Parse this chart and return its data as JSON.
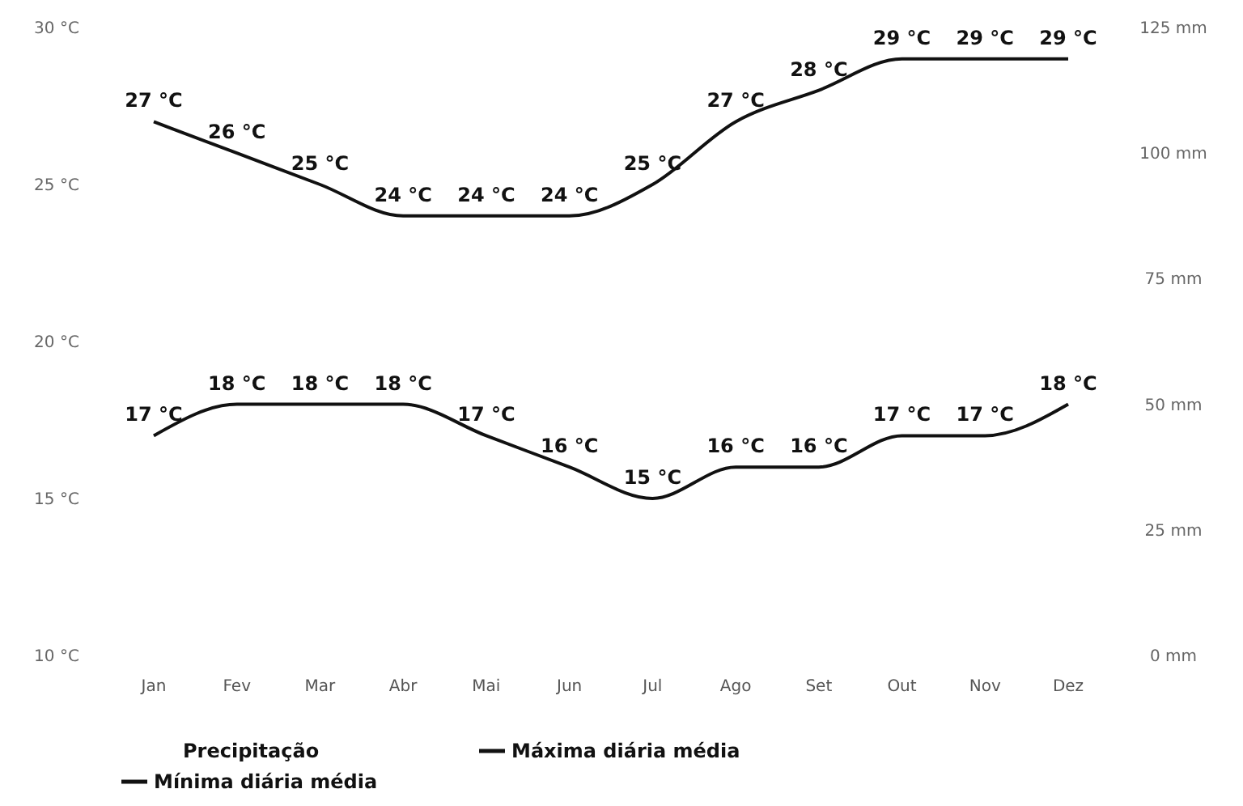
{
  "chart_data": {
    "type": "line",
    "categories": [
      "Jan",
      "Fev",
      "Mar",
      "Abr",
      "Mai",
      "Jun",
      "Jul",
      "Ago",
      "Set",
      "Out",
      "Nov",
      "Dez"
    ],
    "ylim": [
      10,
      30
    ],
    "yticks": [
      {
        "value": 10,
        "label": "10 °C"
      },
      {
        "value": 15,
        "label": "15 °C"
      },
      {
        "value": 20,
        "label": "20 °C"
      },
      {
        "value": 25,
        "label": "25 °C"
      },
      {
        "value": 30,
        "label": "30 °C"
      }
    ],
    "y2lim": [
      0,
      125
    ],
    "y2ticks": [
      {
        "value": 0,
        "label": "0 mm"
      },
      {
        "value": 25,
        "label": "25 mm"
      },
      {
        "value": 50,
        "label": "50 mm"
      },
      {
        "value": 75,
        "label": "75 mm"
      },
      {
        "value": 100,
        "label": "100 mm"
      },
      {
        "value": 125,
        "label": "125 mm"
      }
    ],
    "grid": false,
    "legend": "bottom",
    "marker": "none",
    "line_style": "solid",
    "series": [
      {
        "name": "Precipitação",
        "type": "bar",
        "values": [
          null,
          null,
          null,
          null,
          null,
          null,
          null,
          null,
          null,
          null,
          null,
          null
        ]
      },
      {
        "name": "Máxima diária média",
        "color": "#111111",
        "values": [
          27,
          26,
          25,
          24,
          24,
          24,
          25,
          27,
          28,
          29,
          29,
          29
        ],
        "value_labels": [
          "27 °C",
          "26 °C",
          "25 °C",
          "24 °C",
          "24 °C",
          "24 °C",
          "25 °C",
          "27 °C",
          "28 °C",
          "29 °C",
          "29 °C",
          "29 °C"
        ]
      },
      {
        "name": "Mínima diária média",
        "color": "#111111",
        "values": [
          17,
          18,
          18,
          18,
          17,
          16,
          15,
          16,
          16,
          17,
          17,
          18
        ],
        "value_labels": [
          "17 °C",
          "18 °C",
          "18 °C",
          "18 °C",
          "17 °C",
          "16 °C",
          "15 °C",
          "16 °C",
          "16 °C",
          "17 °C",
          "17 °C",
          "18 °C"
        ]
      }
    ]
  }
}
